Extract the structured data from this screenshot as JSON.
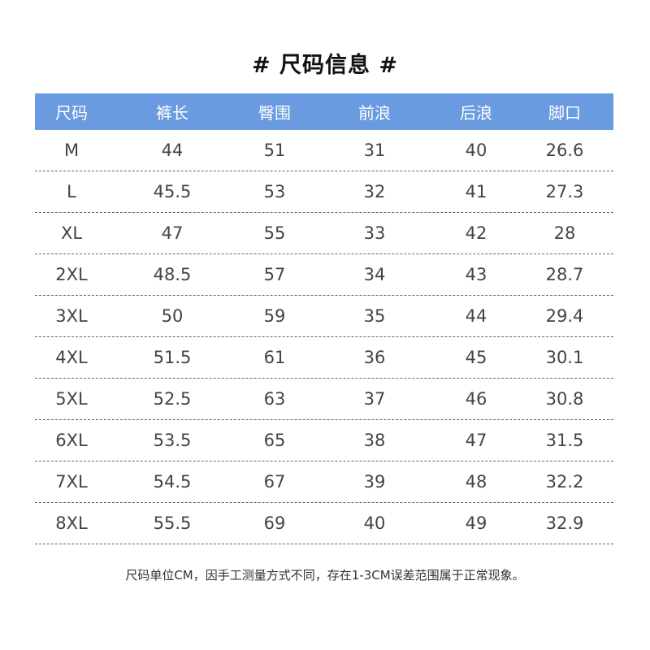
{
  "title": "# 尺码信息 #",
  "headers": [
    "尺码",
    "裤长",
    "臀围",
    "前浪",
    "后浪",
    "脚口"
  ],
  "header_bg": "#6a9be0",
  "rows": [
    [
      "M",
      "44",
      "51",
      "31",
      "40",
      "26.6"
    ],
    [
      "L",
      "45.5",
      "53",
      "32",
      "41",
      "27.3"
    ],
    [
      "XL",
      "47",
      "55",
      "33",
      "42",
      "28"
    ],
    [
      "2XL",
      "48.5",
      "57",
      "34",
      "43",
      "28.7"
    ],
    [
      "3XL",
      "50",
      "59",
      "35",
      "44",
      "29.4"
    ],
    [
      "4XL",
      "51.5",
      "61",
      "36",
      "45",
      "30.1"
    ],
    [
      "5XL",
      "52.5",
      "63",
      "37",
      "46",
      "30.8"
    ],
    [
      "6XL",
      "53.5",
      "65",
      "38",
      "47",
      "31.5"
    ],
    [
      "7XL",
      "54.5",
      "67",
      "39",
      "48",
      "32.2"
    ],
    [
      "8XL",
      "55.5",
      "69",
      "40",
      "49",
      "32.9"
    ]
  ],
  "note": "尺码单位CM，因手工测量方式不同，存在1-3CM误差范围属于正常现象。"
}
